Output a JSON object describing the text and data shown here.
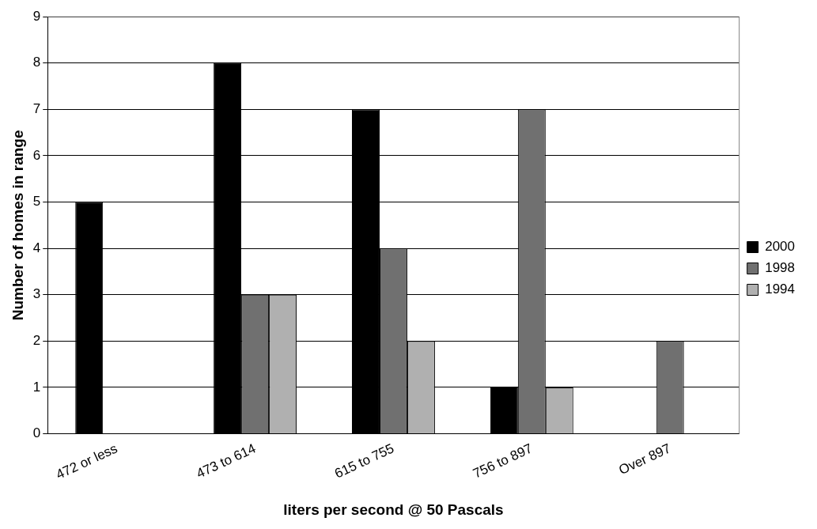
{
  "chart_data": {
    "type": "bar",
    "xlabel": "liters per second @ 50 Pascals",
    "ylabel": "Number of homes in range",
    "categories": [
      "472 or less",
      "473 to 614",
      "615 to 755",
      "756 to 897",
      "Over 897"
    ],
    "series": [
      {
        "name": "2000",
        "color": "#000000",
        "values": [
          5,
          8,
          7,
          1,
          0
        ]
      },
      {
        "name": "1998",
        "color": "#707070",
        "values": [
          0,
          3,
          4,
          7,
          2
        ]
      },
      {
        "name": "1994",
        "color": "#b0b0b0",
        "values": [
          0,
          3,
          2,
          1,
          0
        ]
      }
    ],
    "ylim": [
      0,
      9
    ],
    "yticks": [
      0,
      1,
      2,
      3,
      4,
      5,
      6,
      7,
      8,
      9
    ],
    "grid": "y",
    "legend": "right"
  }
}
